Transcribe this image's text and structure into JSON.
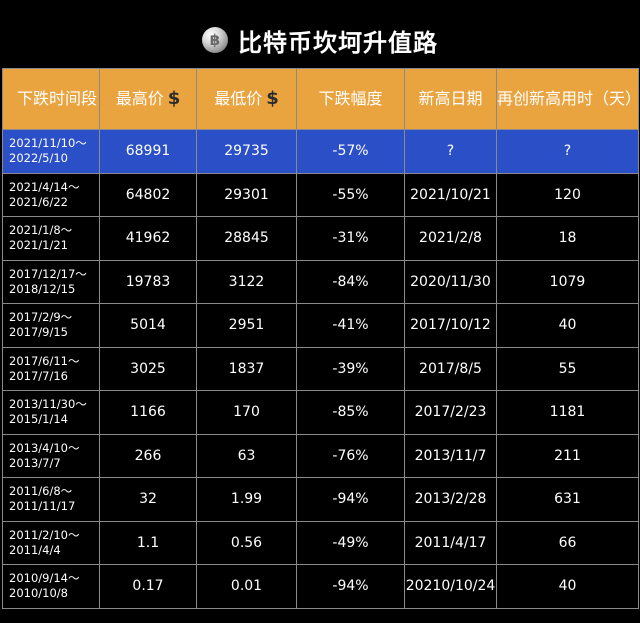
{
  "title": "比特币坎坷升值路",
  "icon": "bitcoin-coin-icon",
  "colors": {
    "header_bg": "#e9a33f",
    "highlight_row": "#2b4fc7",
    "body_bg": "#000000"
  },
  "headers": {
    "period": "下跌时间段",
    "high": "最高价",
    "low": "最低价",
    "drop": "下跌幅度",
    "new_high_date": "新高日期",
    "days": "再创新高用时（天）"
  },
  "currency_symbol": "$",
  "rows": [
    {
      "start": "2021/11/10～",
      "end": "2022/5/10",
      "high": "68991",
      "low": "29735",
      "drop": "-57%",
      "date": "?",
      "days": "?"
    },
    {
      "start": "2021/4/14～",
      "end": "2021/6/22",
      "high": "64802",
      "low": "29301",
      "drop": "-55%",
      "date": "2021/10/21",
      "days": "120"
    },
    {
      "start": "2021/1/8～",
      "end": "2021/1/21",
      "high": "41962",
      "low": "28845",
      "drop": "-31%",
      "date": "2021/2/8",
      "days": "18"
    },
    {
      "start": "2017/12/17～",
      "end": "2018/12/15",
      "high": "19783",
      "low": "3122",
      "drop": "-84%",
      "date": "2020/11/30",
      "days": "1079"
    },
    {
      "start": "2017/2/9～",
      "end": "2017/9/15",
      "high": "5014",
      "low": "2951",
      "drop": "-41%",
      "date": "2017/10/12",
      "days": "40"
    },
    {
      "start": "2017/6/11～",
      "end": "2017/7/16",
      "high": "3025",
      "low": "1837",
      "drop": "-39%",
      "date": "2017/8/5",
      "days": "55"
    },
    {
      "start": "2013/11/30～",
      "end": "2015/1/14",
      "high": "1166",
      "low": "170",
      "drop": "-85%",
      "date": "2017/2/23",
      "days": "1181"
    },
    {
      "start": "2013/4/10～",
      "end": "2013/7/7",
      "high": "266",
      "low": "63",
      "drop": "-76%",
      "date": "2013/11/7",
      "days": "211"
    },
    {
      "start": "2011/6/8～",
      "end": "2011/11/17",
      "high": "32",
      "low": "1.99",
      "drop": "-94%",
      "date": "2013/2/28",
      "days": "631"
    },
    {
      "start": "2011/2/10～",
      "end": "2011/4/4",
      "high": "1.1",
      "low": "0.56",
      "drop": "-49%",
      "date": "2011/4/17",
      "days": "66"
    },
    {
      "start": "2010/9/14～",
      "end": "2010/10/8",
      "high": "0.17",
      "low": "0.01",
      "drop": "-94%",
      "date": "20210/10/24",
      "days": "40"
    }
  ]
}
